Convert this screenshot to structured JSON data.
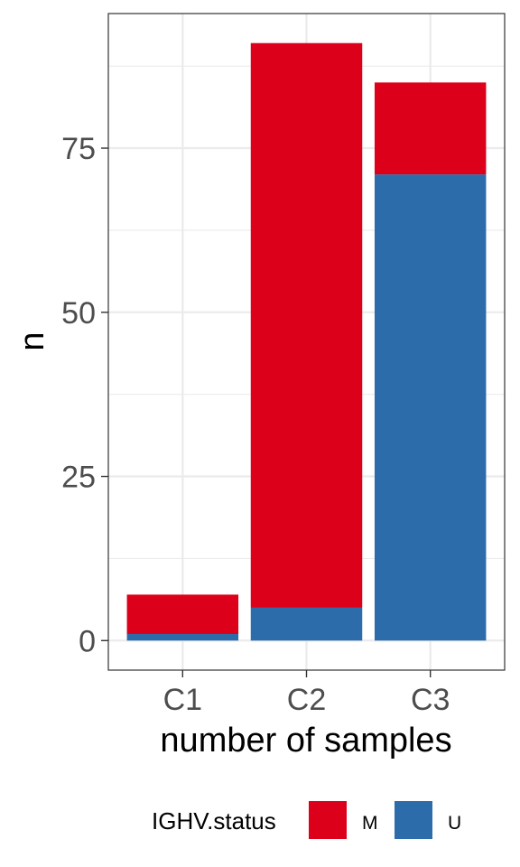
{
  "chart_data": {
    "type": "bar",
    "stacked": true,
    "categories": [
      "C1",
      "C2",
      "C3"
    ],
    "series": [
      {
        "name": "U",
        "values": [
          1,
          5,
          71
        ],
        "color": "#2C6CAB"
      },
      {
        "name": "M",
        "values": [
          6,
          86,
          14
        ],
        "color": "#DC001A"
      }
    ],
    "xlabel": "number of samples",
    "ylabel": "n",
    "ylim": [
      -4.5,
      95.5
    ],
    "yticks": [
      0,
      25,
      50,
      75
    ],
    "ytick_labels": [
      "0",
      "25",
      "50",
      "75"
    ],
    "grid": true,
    "legend": {
      "title": "IGHV.status",
      "position": "bottom",
      "entries": [
        {
          "label": "M",
          "color": "#DC001A"
        },
        {
          "label": "U",
          "color": "#2C6CAB"
        }
      ]
    }
  }
}
